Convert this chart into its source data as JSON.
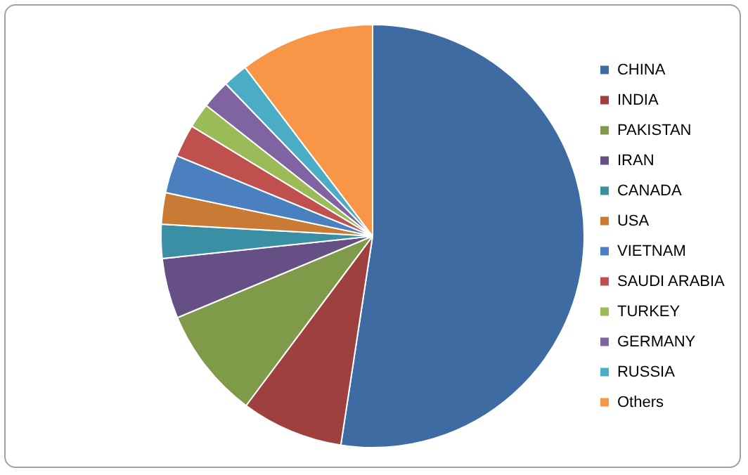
{
  "chart_data": {
    "type": "pie",
    "categories": [
      "CHINA",
      "INDIA",
      "PAKISTAN",
      "IRAN",
      "CANADA",
      "USA",
      "VIETNAM",
      "SAUDI ARABIA",
      "TURKEY",
      "GERMANY",
      "RUSSIA",
      "Others"
    ],
    "values": [
      52.4,
      7.8,
      8.5,
      4.6,
      2.6,
      2.4,
      2.9,
      2.5,
      1.9,
      2.2,
      1.9,
      10.3
    ],
    "colors": [
      "#3f6ba3",
      "#9e413e",
      "#7f9a48",
      "#664f84",
      "#3a8fa4",
      "#c97a35",
      "#4a7fc0",
      "#c0504d",
      "#9bbb59",
      "#8064a2",
      "#4bacc6",
      "#f79646"
    ],
    "legend": "right"
  }
}
